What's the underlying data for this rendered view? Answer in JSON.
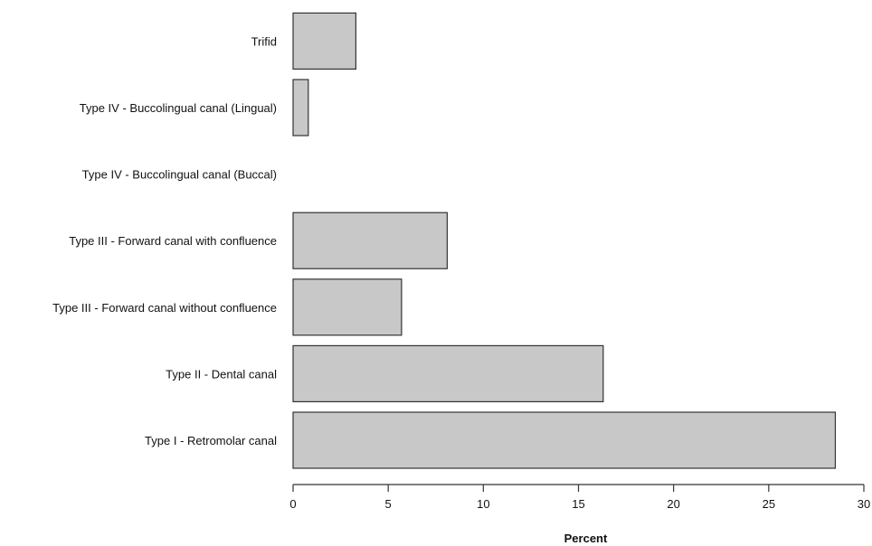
{
  "chart_data": {
    "type": "bar",
    "orientation": "horizontal",
    "categories": [
      "Type I - Retromolar canal",
      "Type II - Dental canal",
      "Type III - Forward canal without confluence",
      "Type III - Forward canal with confluence",
      "Type IV - Buccolingual canal (Buccal)",
      "Type IV - Buccolingual canal (Lingual)",
      "Trifid"
    ],
    "values": [
      28.5,
      16.3,
      5.7,
      8.1,
      0.0,
      0.8,
      3.3
    ],
    "title": "",
    "xlabel": "Percent",
    "ylabel": "",
    "xlim": [
      0,
      30
    ],
    "xticks": [
      0,
      5,
      10,
      15,
      20,
      25,
      30
    ],
    "grid": false,
    "legend": "none",
    "bar_color": "#c8c8c8",
    "edge_color": "#333333"
  }
}
